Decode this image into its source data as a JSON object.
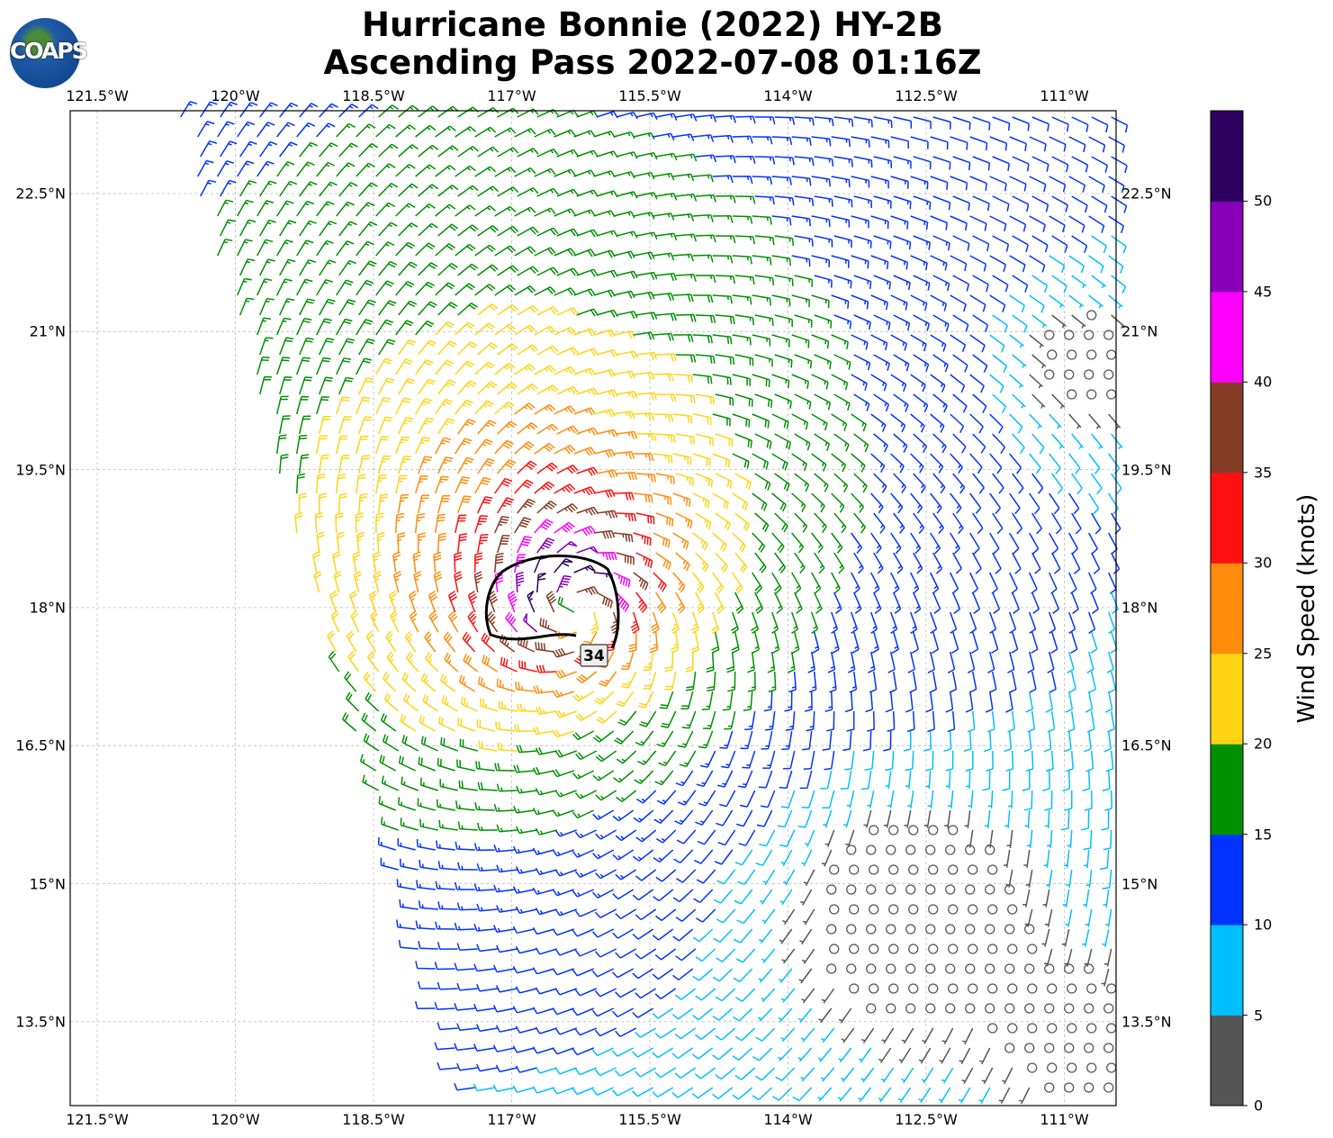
{
  "logo": {
    "text": "COAPS"
  },
  "title": {
    "line1": "Hurricane Bonnie (2022) HY-2B",
    "line2": "Ascending Pass 2022-07-08 01:16Z"
  },
  "chart_data": {
    "type": "wind-barb field",
    "storm": "Hurricane Bonnie (2022)",
    "instrument": "HY-2B",
    "pass": "Ascending",
    "time": "2022-07-08 01:16Z",
    "circulation": "cyclonic (counter-clockwise)",
    "center_lon_w": 116.3,
    "center_lat_n": 18.0,
    "max_wind_kt": 48,
    "radius_max_wind_deg": 0.45,
    "contour": {
      "level_kt": 34,
      "label": "34"
    },
    "x_ticks": [
      "121.5°W",
      "120°W",
      "118.5°W",
      "117°W",
      "115.5°W",
      "114°W",
      "112.5°W",
      "111°W"
    ],
    "x_tick_values": [
      121.5,
      120,
      118.5,
      117,
      115.5,
      114,
      112.5,
      111
    ],
    "y_ticks": [
      "22.5°N",
      "21°N",
      "19.5°N",
      "18°N",
      "16.5°N",
      "15°N",
      "13.5°N"
    ],
    "y_tick_values": [
      22.5,
      21,
      19.5,
      18,
      16.5,
      15,
      13.5
    ],
    "xlim_w": [
      121.8,
      110.45
    ],
    "ylim_n": [
      12.6,
      23.4
    ],
    "grid": true,
    "colorbar": {
      "label": "Wind Speed (knots)",
      "ticks": [
        "0",
        "5",
        "10",
        "15",
        "20",
        "25",
        "30",
        "35",
        "40",
        "45",
        "50"
      ],
      "bins": [
        0,
        5,
        10,
        15,
        20,
        25,
        30,
        35,
        40,
        45,
        50,
        55
      ],
      "colors": [
        "#555555",
        "#00bfff",
        "#0033ff",
        "#009000",
        "#ffd414",
        "#ff8c0a",
        "#ff1010",
        "#843c24",
        "#ff00ff",
        "#8800b8",
        "#2d0060"
      ]
    }
  }
}
